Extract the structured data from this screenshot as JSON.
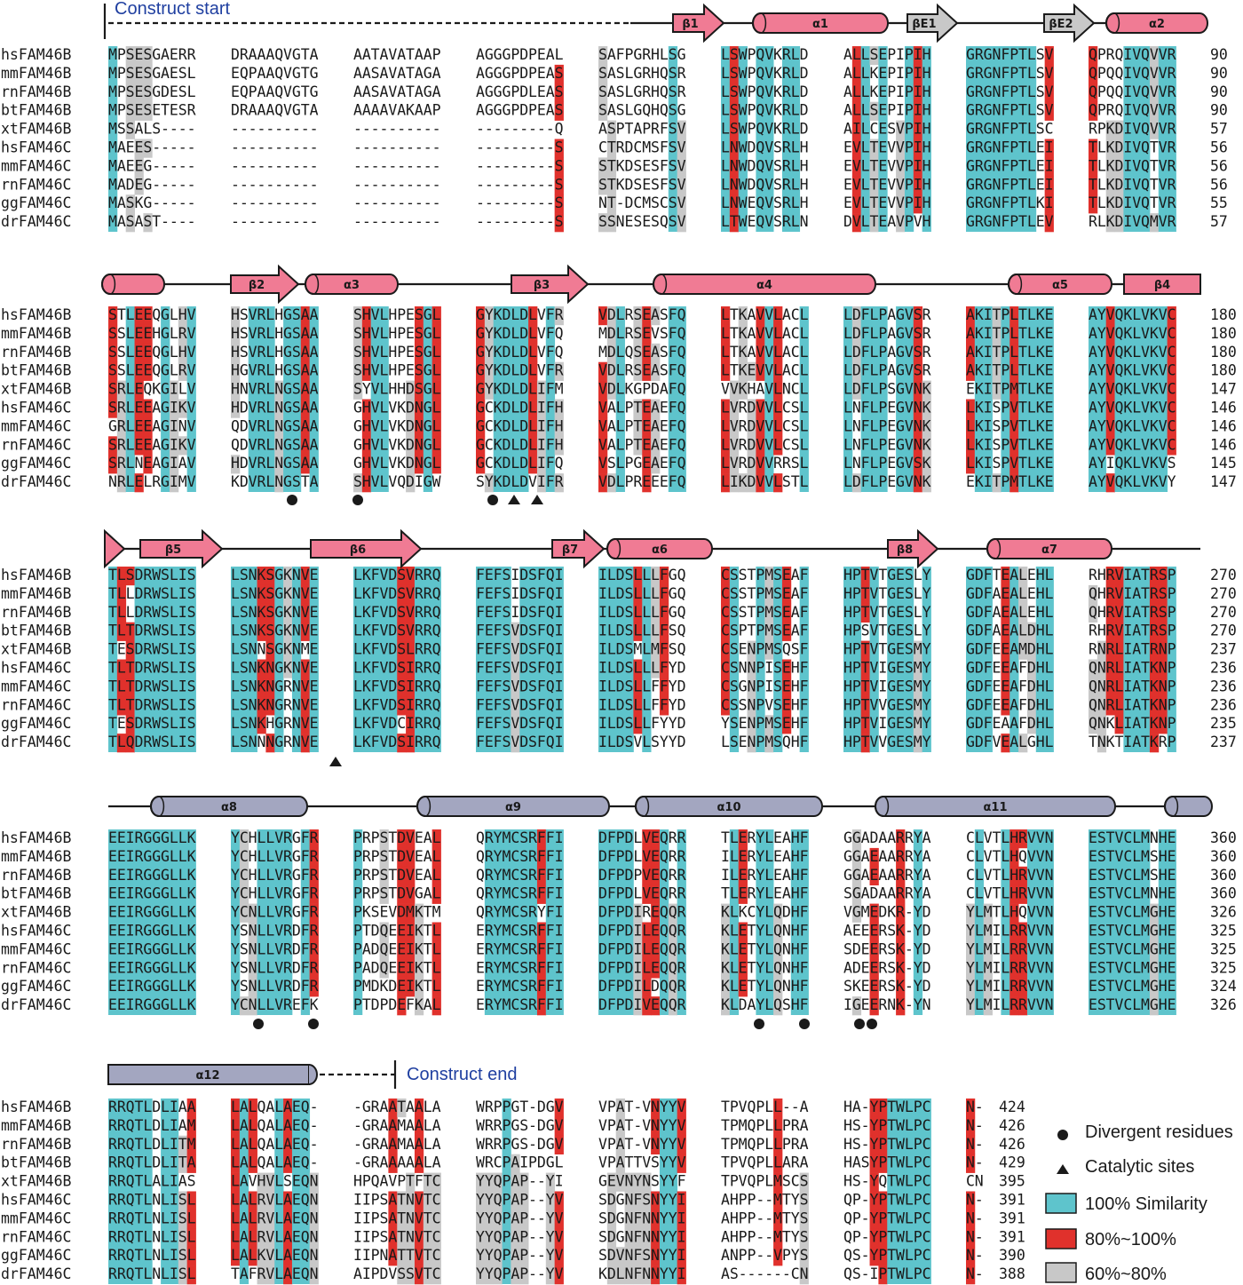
{
  "colors": {
    "cyan": "#5ec4cc",
    "red": "#e0312c",
    "gray": "#c8c8c8",
    "helix_pink": "#f07b94",
    "helix_slate": "#a3a6c0",
    "strand_pink": "#f07b94",
    "strand_gray": "#c8c8c8",
    "construct_blue": "#1f3fa0"
  },
  "species": [
    "hsFAM46B",
    "mmFAM46B",
    "rnFAM46B",
    "btFAM46B",
    "xtFAM46B",
    "hsFAM46C",
    "mmFAM46C",
    "rnFAM46C",
    "ggFAM46C",
    "drFAM46C"
  ],
  "construct": {
    "start_label": "Construct start",
    "end_label": "Construct end"
  },
  "legend": {
    "divergent": "Divergent residues",
    "catalytic": "Catalytic sites",
    "similarity100": "100% Similarity",
    "similarity80": "80%~100%",
    "similarity60": "60%~80%"
  },
  "blocks": [
    {
      "end_numbers": [
        "90",
        "90",
        "90",
        "90",
        "57",
        "56",
        "56",
        "56",
        "55",
        "57"
      ],
      "sequences": [
        [
          "MPSESGAERR",
          "DRAAAQVGTA",
          "AATAVATAAP",
          "AGGGPDPEAL",
          "SAFPGRHLSG",
          "LSWPQVKRLD",
          "ALLSEPIPIH",
          "GRGNFPTLSV",
          "QPRQIVQVVR"
        ],
        [
          "MPSESGAESL",
          "EQPAAQVGTG",
          "AASAVATAGA",
          "AGGGPDPEAS",
          "SASLGRHQSR",
          "LSWPQVKRLD",
          "ALLKEPIPIH",
          "GRGNFPTLSV",
          "QPQQIVQVVR"
        ],
        [
          "MPSESGDESL",
          "EQPAAQVGTG",
          "AASAVATAGA",
          "AGGGPDLEAS",
          "SASLGRHQSR",
          "LSWPQVKRLD",
          "ALLKEPIPIH",
          "GRGNFPTLSV",
          "QPQQIVQVVR"
        ],
        [
          "MPSESETESR",
          "DRAAAQVGTA",
          "AAAAVAKAAP",
          "AGGGPDPEAS",
          "SASLGQHQSG",
          "LSWPQVKRLD",
          "ALLSEPIPIH",
          "GRGNFPTLSV",
          "QPRQIVQVVR"
        ],
        [
          "MSSALS----",
          "----------",
          "----------",
          "---------Q",
          "ASPTAPRFSV",
          "LSWPQVKRLD",
          "AILCESVPIH",
          "GRGNFPTLSC",
          "RPKDIVQVVR"
        ],
        [
          "MAEES-----",
          "----------",
          "----------",
          "---------S",
          "CTRDCMSFSV",
          "LNWDQVSRLH",
          "EVLTEVVPIH",
          "GRGNFPTLEI",
          "TLKDIVQTVR"
        ],
        [
          "MAEEG-----",
          "----------",
          "----------",
          "---------S",
          "STKDSESFSV",
          "LNWDQVSRLH",
          "EVLTEVVPIH",
          "GRGNFPTLEI",
          "TLKDIVQTVR"
        ],
        [
          "MADEG-----",
          "----------",
          "----------",
          "---------S",
          "STKDSESFSV",
          "LNWDQVSRLH",
          "EVLTEVVPIH",
          "GRGNFPTLEI",
          "TLKDIVQTVR"
        ],
        [
          "MASKG-----",
          "----------",
          "----------",
          "---------S",
          "NT-DCMSCSV",
          "LNWEQVSRLH",
          "EVLTEVVPIH",
          "GRGNFPTLKI",
          "TLKDIVQTVR"
        ],
        [
          "MASAST----",
          "----------",
          "----------",
          "---------S",
          "SSNESESQSV",
          "LTWEQVSRLN",
          "DVLTEAVPVH",
          "GRGNFPTLEV",
          "RLKDIVQMVR"
        ]
      ]
    },
    {
      "end_numbers": [
        "180",
        "180",
        "180",
        "180",
        "147",
        "146",
        "146",
        "146",
        "145",
        "147"
      ],
      "sequences": [
        [
          "STLEEQGLHV",
          "HSVRLHGSAA",
          "SHVLHPESGL",
          "GYKDLDLVFR",
          "VDLRSEASFQ",
          "LTKAVVLACL",
          "LDFLPAGVSR",
          "AKITPLTLKE",
          "AYVQKLVKVC"
        ],
        [
          "SSLEEHGLRV",
          "HSVRLHGSAA",
          "SHVLHPESGL",
          "GYKDLDLVFQ",
          "MDLRSEVSFQ",
          "LTKAVVLACL",
          "LDFLPAGVSR",
          "AKITPLTLKE",
          "AYVQKLVKVC"
        ],
        [
          "SSLEEQGLHV",
          "HSVRLHGSAA",
          "SHVLHPESGL",
          "GYKDLDLVFQ",
          "MDLQSEASFQ",
          "LTKAVVLACL",
          "LDFLPAGVSR",
          "AKITPLTLKE",
          "AYVQKLVKVC"
        ],
        [
          "SSLEEQGLRV",
          "HGVRLHGSAA",
          "SHVLHPESGL",
          "GYKDLDLVFR",
          "VDLRSEASFQ",
          "LTKEVVLACL",
          "LDFLPAGVSR",
          "AKITPLTLKE",
          "AYVQKLVKVC"
        ],
        [
          "SRLEQKGILV",
          "HNVRLNGSAA",
          "SYVLHHDSGL",
          "GYKDLDLIFM",
          "VDLKGPDAFQ",
          "VVKHAVLNCL",
          "LDFLPSGVNK",
          "EKITPMTLKE",
          "AYVQKLVKVC"
        ],
        [
          "SRLEEAGIKV",
          "HDVRLNGSAA",
          "GHVLVKDNGL",
          "GCKDLDLIFH",
          "VALPTEAEFQ",
          "LVRDVVLCSL",
          "LNFLPEGVNK",
          "LKISPVTLKE",
          "AYVQKLVKVC"
        ],
        [
          "GRLEEAGINV",
          "QDVRLNGSAA",
          "GHVLVKDNGL",
          "GCKDLDLIFH",
          "VALPTEAEFQ",
          "LVRDVVLCSL",
          "LNFLPEGVNK",
          "LKISPVTLKE",
          "AYVQKLVKVC"
        ],
        [
          "SRLEEAGIKV",
          "QDVRLNGSAA",
          "GHVLVKDNGL",
          "GCKDLDLIFH",
          "VALPTEAEFQ",
          "LVRDVVLCSL",
          "LNFLPEGVNK",
          "LKISPVTLKE",
          "AYVQKLVKVC"
        ],
        [
          "SRLNEAGIAV",
          "HDVRLNGSAA",
          "GHVLVKDNGL",
          "GCKDLDLIFQ",
          "VSLPGEAEFQ",
          "LVRDVVRRSL",
          "LNFLPEGVSK",
          "LKISPVTLKE",
          "AYIQKLVKVS"
        ],
        [
          "NRLELRGIMV",
          "KDVRLNGSTA",
          "SHVLVQDIGW",
          "SYKDLDVIFR",
          "VDLPREEEFQ",
          "LIKDVVLSTL",
          "LDFLPEGVNK",
          "EKITPMTLKE",
          "AYVQKLVKVY"
        ]
      ]
    },
    {
      "end_numbers": [
        "270",
        "270",
        "270",
        "270",
        "237",
        "236",
        "236",
        "236",
        "235",
        "237"
      ],
      "sequences": [
        [
          "TLSDRWSLIS",
          "LSNKSGKNVE",
          "LKFVDSVRRQ",
          "FEFSIDSFQI",
          "ILDSLLLFGQ",
          "CSSTPMSEAF",
          "HPTVTGESLY",
          "GDFTEALEHL",
          "RHRVIATRSP"
        ],
        [
          "TLLDRWSLIS",
          "LSNKSGKNVE",
          "LKFVDSVRRQ",
          "FEFSIDSFQI",
          "ILDSLLLFGQ",
          "CSSTPMSEAF",
          "HPTVTGESLY",
          "GDFAEALEHL",
          "QHRVIATRSP"
        ],
        [
          "TLLDRWSLIS",
          "LSNKSGKNVE",
          "LKFVDSVRRQ",
          "FEFSIDSFQI",
          "ILDSLLLFGQ",
          "CSSTPMSEAF",
          "HPTVTGESLY",
          "GDFAEALEHL",
          "QHRVIATRSP"
        ],
        [
          "TLTDRWSLIS",
          "LSNKSGKNVE",
          "LKFVDSVRRQ",
          "FEFSVDSFQI",
          "ILDSLLLFSQ",
          "CSPTPMSEAF",
          "HPSVTGESLY",
          "GDFAEALDHL",
          "RHRVIATRSP"
        ],
        [
          "TESDRWSLIS",
          "LSNNSGKNME",
          "LKFVDSLRRQ",
          "FEFSVDSFQI",
          "ILDSMLMFSQ",
          "CSENPMSQSF",
          "HPTVTGESMY",
          "GDFEEAMDHL",
          "RNRLIATRNP"
        ],
        [
          "TLTDRWSLIS",
          "LSNKNGKNVE",
          "LKFVDSIRRQ",
          "FEFSVDSFQI",
          "ILDSLLLFYD",
          "CSNNPISEHF",
          "HPTVIGESMY",
          "GDFEEAFDHL",
          "QNRLIATKNP"
        ],
        [
          "TLTDRWSLIS",
          "LSNKNGRNVE",
          "LKFVDSIRRQ",
          "FEFSVDSFQI",
          "ILDSLLFFYD",
          "CSGNPISEHF",
          "HPTVIGESMY",
          "GDFEEAFDHL",
          "QNRLIATKNP"
        ],
        [
          "TLTDRWSLIS",
          "LSNKNGRNVE",
          "LKFVDSIRRQ",
          "FEFSVDSFQI",
          "ILDSLLFFYD",
          "CSSNPVSEHF",
          "HPTVVGESMY",
          "GDFEEAFDHL",
          "QNRLIATKNP"
        ],
        [
          "TESDRWSLIS",
          "LSNKHGRNVE",
          "LKFVDCIRRQ",
          "FEFSVDSFQI",
          "ILDSLLFYYD",
          "YSENPMSEHF",
          "HPTVIGESMY",
          "GDFEAAFDHL",
          "QNKLIATKNP"
        ],
        [
          "TLQDRWSLIS",
          "LSNNNGRNVE",
          "LKFVDSIRRQ",
          "FEFSVDSFQI",
          "ILDSVLSYYD",
          "LSENPMSQHF",
          "HPTVVGESMY",
          "GDFVEALGHL",
          "TNKTIATKRP"
        ]
      ]
    },
    {
      "end_numbers": [
        "360",
        "360",
        "360",
        "360",
        "326",
        "325",
        "325",
        "325",
        "324",
        "326"
      ],
      "sequences": [
        [
          "EEIRGGGLLK",
          "YCHLLVRGFR",
          "PRPSTDVEAL",
          "QRYMCSRFFI",
          "DFPDLVEQRR",
          "TLERYLEAHF",
          "GGADAARRYA",
          "CLVTLHRVVN",
          "ESTVCLMNHE"
        ],
        [
          "EEIRGGGLLK",
          "YCHLLVRGFR",
          "PRPSTDVEAL",
          "QRYMCSRFFI",
          "DFPDLVEQRR",
          "ILERYLEAHF",
          "GGAEAARRYA",
          "CLVTLHQVVN",
          "ESTVCLMSHE"
        ],
        [
          "EEIRGGGLLK",
          "YCHLLVRGFR",
          "PRPSTDVEAL",
          "QRYMCSRFFI",
          "DFPDPVEQRR",
          "ILERYLEAHF",
          "GGAEAARRYA",
          "CLVTLHRVVN",
          "ESTVCLMSHE"
        ],
        [
          "EEIRGGGLLK",
          "YCHLLVRGFR",
          "PRPSTDVGAL",
          "QRYMCSRFFI",
          "DFPDLVEQRR",
          "TLERYLEAHF",
          "SGADAARRYA",
          "CLVTLHRVVN",
          "ESTVCLMNHE"
        ],
        [
          "EEIRGGGLLK",
          "YCNLLVRGFR",
          "PKSEVDMKTM",
          "QRYMCSRYFI",
          "DFPDIREQQR",
          "KLKCYLQDHF",
          "VGMEDKR-YD",
          "YLMTLHQVVN",
          "ESTVCLMGHE"
        ],
        [
          "EEIRGGGLLK",
          "YSNLLVRDFR",
          "PTDQEEIKTL",
          "ERYMCSRFFI",
          "DFPDILEQQR",
          "KLETYLQNHF",
          "AEEERSK-YD",
          "YLMILRRVVN",
          "ESTVCLMGHE"
        ],
        [
          "EEIRGGGLLK",
          "YSNLLVRDFR",
          "PADQEEIKTL",
          "ERYMCSRFFI",
          "DFPDILEQQR",
          "KLETYLQNHF",
          "SDEERSK-YD",
          "YLMILRRVVN",
          "ESTVCLMGHE"
        ],
        [
          "EEIRGGGLLK",
          "YSNLLVRDFR",
          "PADQEEIKTL",
          "ERYMCSRFFI",
          "DFPDILEQQR",
          "KLETYLQNHF",
          "ADEERSK-YD",
          "YLMILRRVVN",
          "ESTVCLMGHE"
        ],
        [
          "EEIRGGGLLK",
          "YSNLLVRDFR",
          "PMDKDEIKTL",
          "ERYMCSRFFI",
          "DFPDILDQQR",
          "KLETYLQNHF",
          "SKEERSK-YD",
          "YLMILRRVVN",
          "ESTVCLMGHE"
        ],
        [
          "EEIRGGGLLK",
          "YCNLLVREFK",
          "PTDPDEFKAL",
          "ERYMCSRFFI",
          "DFPDIVEQQR",
          "KLDAYLQSHF",
          "IGEERNK-YN",
          "YLMILRRVVN",
          "ESTVCLMGHE"
        ]
      ]
    },
    {
      "end_numbers": [
        "424",
        "426",
        "426",
        "429",
        "395",
        "391",
        "391",
        "391",
        "390",
        "388"
      ],
      "sequences": [
        [
          "RRQTLDLIAA",
          "LALQALAEQ-",
          "-GRAATAALA",
          "WRPPGT-DGV",
          "VPAT-VNYYV",
          "TPVQPLL--A",
          "HA-YPTWLPC",
          "N-"
        ],
        [
          "RRQTLDLIAM",
          "LALQALAEQ-",
          "-GRAAMAALA",
          "WRRPGS-DGV",
          "VPAT-VNYYV",
          "TPMQPLLPRA",
          "HS-YPTWLPC",
          "N-"
        ],
        [
          "RRQTLDLITM",
          "LALQALAEQ-",
          "-GRAAMAALA",
          "WRRPGS-DGV",
          "VPAT-VNYYV",
          "TPMQPLLPRA",
          "HS-YPTWLPC",
          "N-"
        ],
        [
          "RRQTLDLITA",
          "LALQALAEQ-",
          "-GRAAAAALA",
          "WRCPAIPDGL",
          "VPATTVSYYV",
          "TPVQPLLARA",
          "HASYPTWLPC",
          "N-"
        ],
        [
          "RRQTLALIAS",
          "LAVHVLSEQN",
          "HPQAVPTFTC",
          "YYQPAP--YI",
          "GEVNYNSYYF",
          "TPVQPLMSCS",
          "HS-YQTWLPC",
          "CN"
        ],
        [
          "RRQTLNLISL",
          "LALRVLAEQN",
          "IIPSATNVTC",
          "YYQPAP--YV",
          "SDGNFSNYYI",
          "AHPP--MTYS",
          "QP-YPTWLPC",
          "N-"
        ],
        [
          "RRQTLNLISL",
          "LALRVLAEQN",
          "IIPSATNVTC",
          "YYQPAP--YV",
          "SDGNFNNYYI",
          "AHPP--MTYS",
          "QP-YPTWLPC",
          "N-"
        ],
        [
          "RRQTLNLISL",
          "LALRVLAEQN",
          "IIPSATNVTC",
          "YYQPAP--YV",
          "SDGNFNNYYI",
          "AHPP--MTYS",
          "QP-YPTWLPC",
          "N-"
        ],
        [
          "RRQTLNLISL",
          "LALKVLAEQN",
          "IIPNATTVTC",
          "YYQPAP--YV",
          "SDVNFSNYYI",
          "ANPP--VPYS",
          "QS-YPTWLPC",
          "N-"
        ],
        [
          "RRQTLNLISL",
          "TAFRVLAEQN",
          "AIPDVSSVTC",
          "YYQPAP--YV",
          "KDLNFNNYYI",
          "AS------CN",
          "QS-IPTWLPC",
          "N-"
        ]
      ]
    }
  ],
  "secondary_structure": [
    {
      "type": "strand",
      "label": "β1",
      "color": "strand_pink"
    },
    {
      "type": "helix",
      "label": "α1",
      "color": "helix_pink"
    },
    {
      "type": "strand",
      "label": "βE1",
      "color": "strand_gray"
    },
    {
      "type": "strand",
      "label": "βE2",
      "color": "strand_gray"
    },
    {
      "type": "helix",
      "label": "α2",
      "color": "helix_pink"
    },
    {
      "type": "strand",
      "label": "β2",
      "color": "strand_pink"
    },
    {
      "type": "helix",
      "label": "α3",
      "color": "helix_pink"
    },
    {
      "type": "strand",
      "label": "β3",
      "color": "strand_pink"
    },
    {
      "type": "helix",
      "label": "α4",
      "color": "helix_pink"
    },
    {
      "type": "helix",
      "label": "α5",
      "color": "helix_pink"
    },
    {
      "type": "strand",
      "label": "β4",
      "color": "strand_pink"
    },
    {
      "type": "strand",
      "label": "β5",
      "color": "strand_pink"
    },
    {
      "type": "strand",
      "label": "β6",
      "color": "strand_pink"
    },
    {
      "type": "strand",
      "label": "β7",
      "color": "strand_pink"
    },
    {
      "type": "helix",
      "label": "α6",
      "color": "helix_pink"
    },
    {
      "type": "strand",
      "label": "β8",
      "color": "strand_pink"
    },
    {
      "type": "helix",
      "label": "α7",
      "color": "helix_pink"
    },
    {
      "type": "helix",
      "label": "α8",
      "color": "helix_slate"
    },
    {
      "type": "helix",
      "label": "α9",
      "color": "helix_slate"
    },
    {
      "type": "helix",
      "label": "α10",
      "color": "helix_slate"
    },
    {
      "type": "helix",
      "label": "α11",
      "color": "helix_slate"
    },
    {
      "type": "helix",
      "label": "α12",
      "color": "helix_slate"
    }
  ]
}
